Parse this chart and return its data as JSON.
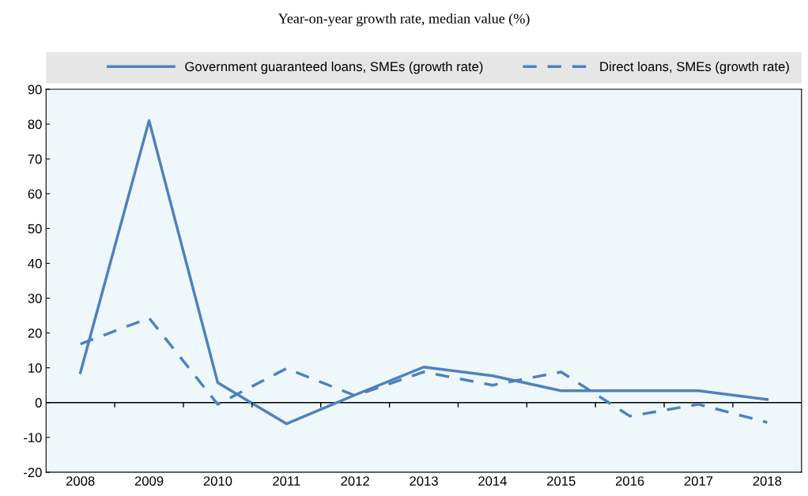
{
  "chart_data": {
    "type": "line",
    "title": "Year-on-year growth rate, median value (%)",
    "categories": [
      "2008",
      "2009",
      "2010",
      "2011",
      "2012",
      "2013",
      "2014",
      "2015",
      "2016",
      "2017",
      "2018"
    ],
    "series": [
      {
        "name": "Government guaranteed loans, SMEs (growth rate)",
        "color": "#4f81bd",
        "line_style": "solid",
        "values": [
          8.6,
          81,
          5.7,
          -6.1,
          2.2,
          10.2,
          7.7,
          3.4,
          3.4,
          3.4,
          0.9
        ]
      },
      {
        "name": "Direct loans, SMEs (growth rate)",
        "color": "#4f81bd",
        "line_style": "dashed",
        "values": [
          16.8,
          24.3,
          -0.5,
          9.8,
          2.0,
          8.8,
          5.0,
          8.8,
          -3.9,
          -0.5,
          -5.7
        ]
      }
    ],
    "ylim": [
      -20,
      90
    ],
    "yticks": [
      -20,
      -10,
      0,
      10,
      20,
      30,
      40,
      50,
      60,
      70,
      80,
      90
    ],
    "ref_lines": [
      {
        "axis": "y",
        "value": 0,
        "color": "#000000"
      }
    ],
    "grid": false,
    "legend": "top",
    "marker": "none"
  }
}
